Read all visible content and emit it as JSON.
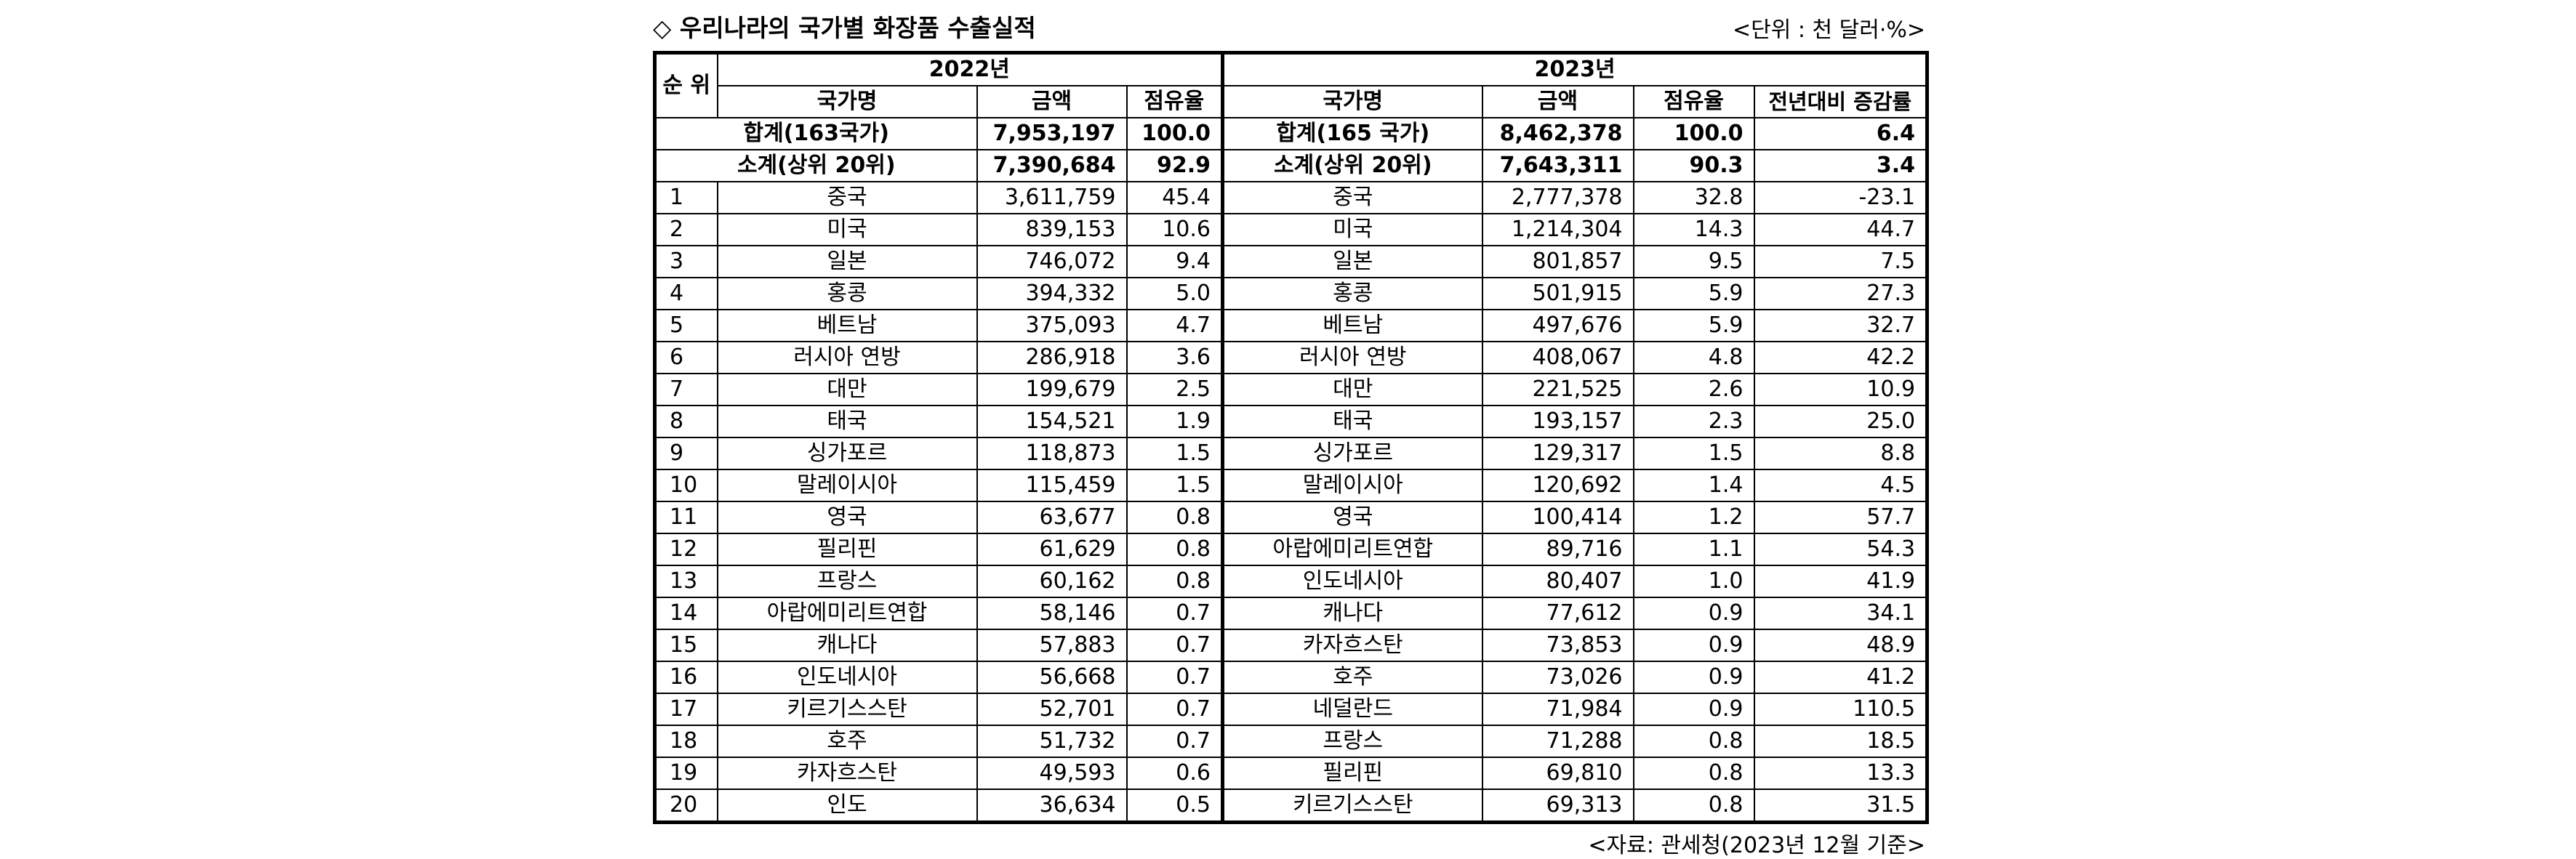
{
  "title": "◇ 우리나라의 국가별 화장품 수출실적",
  "unit": "<단위 : 천 달러·%>",
  "source": "<자료: 관세청(2023년 12월 기준>",
  "header": {
    "rank": "순 위",
    "year_2022": "2022년",
    "year_2023": "2023년",
    "country": "국가명",
    "amount": "금액",
    "share": "점유율",
    "yoy": "전년대비 증감률"
  },
  "total": {
    "label_2022": "합계(163국가)",
    "amount_2022": "7,953,197",
    "share_2022": "100.0",
    "label_2023": "합계(165 국가)",
    "amount_2023": "8,462,378",
    "share_2023": "100.0",
    "yoy": "6.4"
  },
  "subtotal": {
    "label_2022": "소계(상위 20위)",
    "amount_2022": "7,390,684",
    "share_2022": "92.9",
    "label_2023": "소계(상위 20위)",
    "amount_2023": "7,643,311",
    "share_2023": "90.3",
    "yoy": "3.4"
  },
  "rows": [
    {
      "rank": "1",
      "c22": "중국",
      "a22": "3,611,759",
      "s22": "45.4",
      "c23": "중국",
      "a23": "2,777,378",
      "s23": "32.8",
      "yoy": "-23.1"
    },
    {
      "rank": "2",
      "c22": "미국",
      "a22": "839,153",
      "s22": "10.6",
      "c23": "미국",
      "a23": "1,214,304",
      "s23": "14.3",
      "yoy": "44.7"
    },
    {
      "rank": "3",
      "c22": "일본",
      "a22": "746,072",
      "s22": "9.4",
      "c23": "일본",
      "a23": "801,857",
      "s23": "9.5",
      "yoy": "7.5"
    },
    {
      "rank": "4",
      "c22": "홍콩",
      "a22": "394,332",
      "s22": "5.0",
      "c23": "홍콩",
      "a23": "501,915",
      "s23": "5.9",
      "yoy": "27.3"
    },
    {
      "rank": "5",
      "c22": "베트남",
      "a22": "375,093",
      "s22": "4.7",
      "c23": "베트남",
      "a23": "497,676",
      "s23": "5.9",
      "yoy": "32.7"
    },
    {
      "rank": "6",
      "c22": "러시아 연방",
      "a22": "286,918",
      "s22": "3.6",
      "c23": "러시아 연방",
      "a23": "408,067",
      "s23": "4.8",
      "yoy": "42.2"
    },
    {
      "rank": "7",
      "c22": "대만",
      "a22": "199,679",
      "s22": "2.5",
      "c23": "대만",
      "a23": "221,525",
      "s23": "2.6",
      "yoy": "10.9"
    },
    {
      "rank": "8",
      "c22": "태국",
      "a22": "154,521",
      "s22": "1.9",
      "c23": "태국",
      "a23": "193,157",
      "s23": "2.3",
      "yoy": "25.0"
    },
    {
      "rank": "9",
      "c22": "싱가포르",
      "a22": "118,873",
      "s22": "1.5",
      "c23": "싱가포르",
      "a23": "129,317",
      "s23": "1.5",
      "yoy": "8.8"
    },
    {
      "rank": "10",
      "c22": "말레이시아",
      "a22": "115,459",
      "s22": "1.5",
      "c23": "말레이시아",
      "a23": "120,692",
      "s23": "1.4",
      "yoy": "4.5"
    },
    {
      "rank": "11",
      "c22": "영국",
      "a22": "63,677",
      "s22": "0.8",
      "c23": "영국",
      "a23": "100,414",
      "s23": "1.2",
      "yoy": "57.7"
    },
    {
      "rank": "12",
      "c22": "필리핀",
      "a22": "61,629",
      "s22": "0.8",
      "c23": "아랍에미리트연합",
      "a23": "89,716",
      "s23": "1.1",
      "yoy": "54.3"
    },
    {
      "rank": "13",
      "c22": "프랑스",
      "a22": "60,162",
      "s22": "0.8",
      "c23": "인도네시아",
      "a23": "80,407",
      "s23": "1.0",
      "yoy": "41.9"
    },
    {
      "rank": "14",
      "c22": "아랍에미리트연합",
      "a22": "58,146",
      "s22": "0.7",
      "c23": "캐나다",
      "a23": "77,612",
      "s23": "0.9",
      "yoy": "34.1"
    },
    {
      "rank": "15",
      "c22": "캐나다",
      "a22": "57,883",
      "s22": "0.7",
      "c23": "카자흐스탄",
      "a23": "73,853",
      "s23": "0.9",
      "yoy": "48.9"
    },
    {
      "rank": "16",
      "c22": "인도네시아",
      "a22": "56,668",
      "s22": "0.7",
      "c23": "호주",
      "a23": "73,026",
      "s23": "0.9",
      "yoy": "41.2"
    },
    {
      "rank": "17",
      "c22": "키르기스스탄",
      "a22": "52,701",
      "s22": "0.7",
      "c23": "네덜란드",
      "a23": "71,984",
      "s23": "0.9",
      "yoy": "110.5"
    },
    {
      "rank": "18",
      "c22": "호주",
      "a22": "51,732",
      "s22": "0.7",
      "c23": "프랑스",
      "a23": "71,288",
      "s23": "0.8",
      "yoy": "18.5"
    },
    {
      "rank": "19",
      "c22": "카자흐스탄",
      "a22": "49,593",
      "s22": "0.6",
      "c23": "필리핀",
      "a23": "69,810",
      "s23": "0.8",
      "yoy": "13.3"
    },
    {
      "rank": "20",
      "c22": "인도",
      "a22": "36,634",
      "s22": "0.5",
      "c23": "키르기스스탄",
      "a23": "69,313",
      "s23": "0.8",
      "yoy": "31.5"
    }
  ]
}
